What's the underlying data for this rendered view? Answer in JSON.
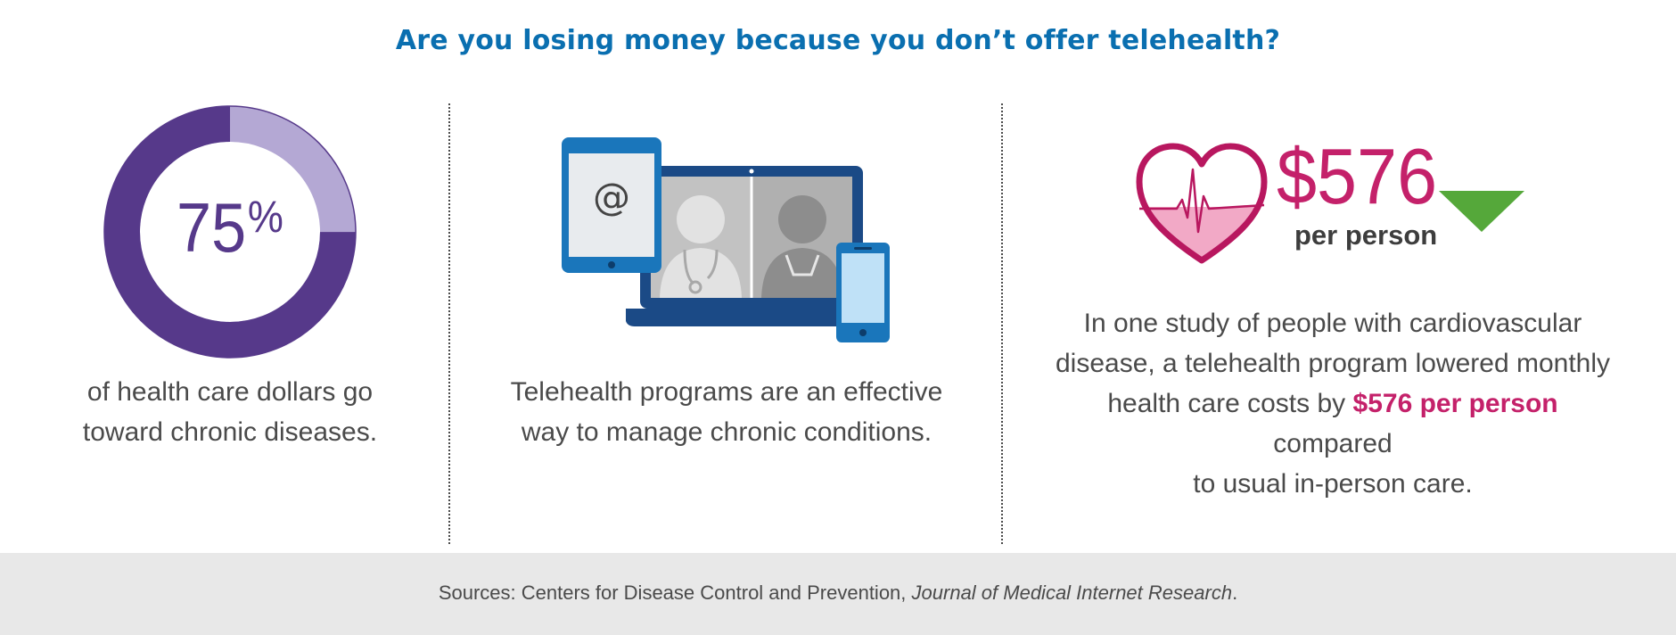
{
  "title": "Are you losing money because you don’t offer telehealth?",
  "colors": {
    "title": "#0a6fb0",
    "donut_dark": "#56398a",
    "donut_light": "#b4a8d4",
    "accent_pink": "#c4216a",
    "arrow_green": "#55a83a",
    "footer_bg": "#e8e8e8"
  },
  "panel1": {
    "percent_value": 75,
    "percent_number": "75",
    "percent_sign": "%",
    "caption_line1": "of health care dollars go",
    "caption_line2": "toward chronic diseases."
  },
  "panel2": {
    "illustration": "telehealth-devices-icon",
    "tablet_symbol": "@",
    "caption_line1": "Telehealth programs are an effective",
    "caption_line2": "way to manage chronic conditions."
  },
  "panel3": {
    "heart_icon": "heart-rate-icon",
    "amount": "$576",
    "unit": "per person",
    "trend_icon": "down-arrow-icon",
    "caption_line1": "In one study of people with cardiovascular",
    "caption_line2": "disease, a telehealth program lowered monthly",
    "caption_line3_before": "health care costs by ",
    "caption_line3_highlight": "$576 per person",
    "caption_line3_after": " compared",
    "caption_line4": "to usual in-person care."
  },
  "footer": {
    "sources_prefix": "Sources: Centers for Disease Control and Prevention, ",
    "sources_journal": "Journal of Medical Internet Research",
    "sources_suffix": "."
  }
}
